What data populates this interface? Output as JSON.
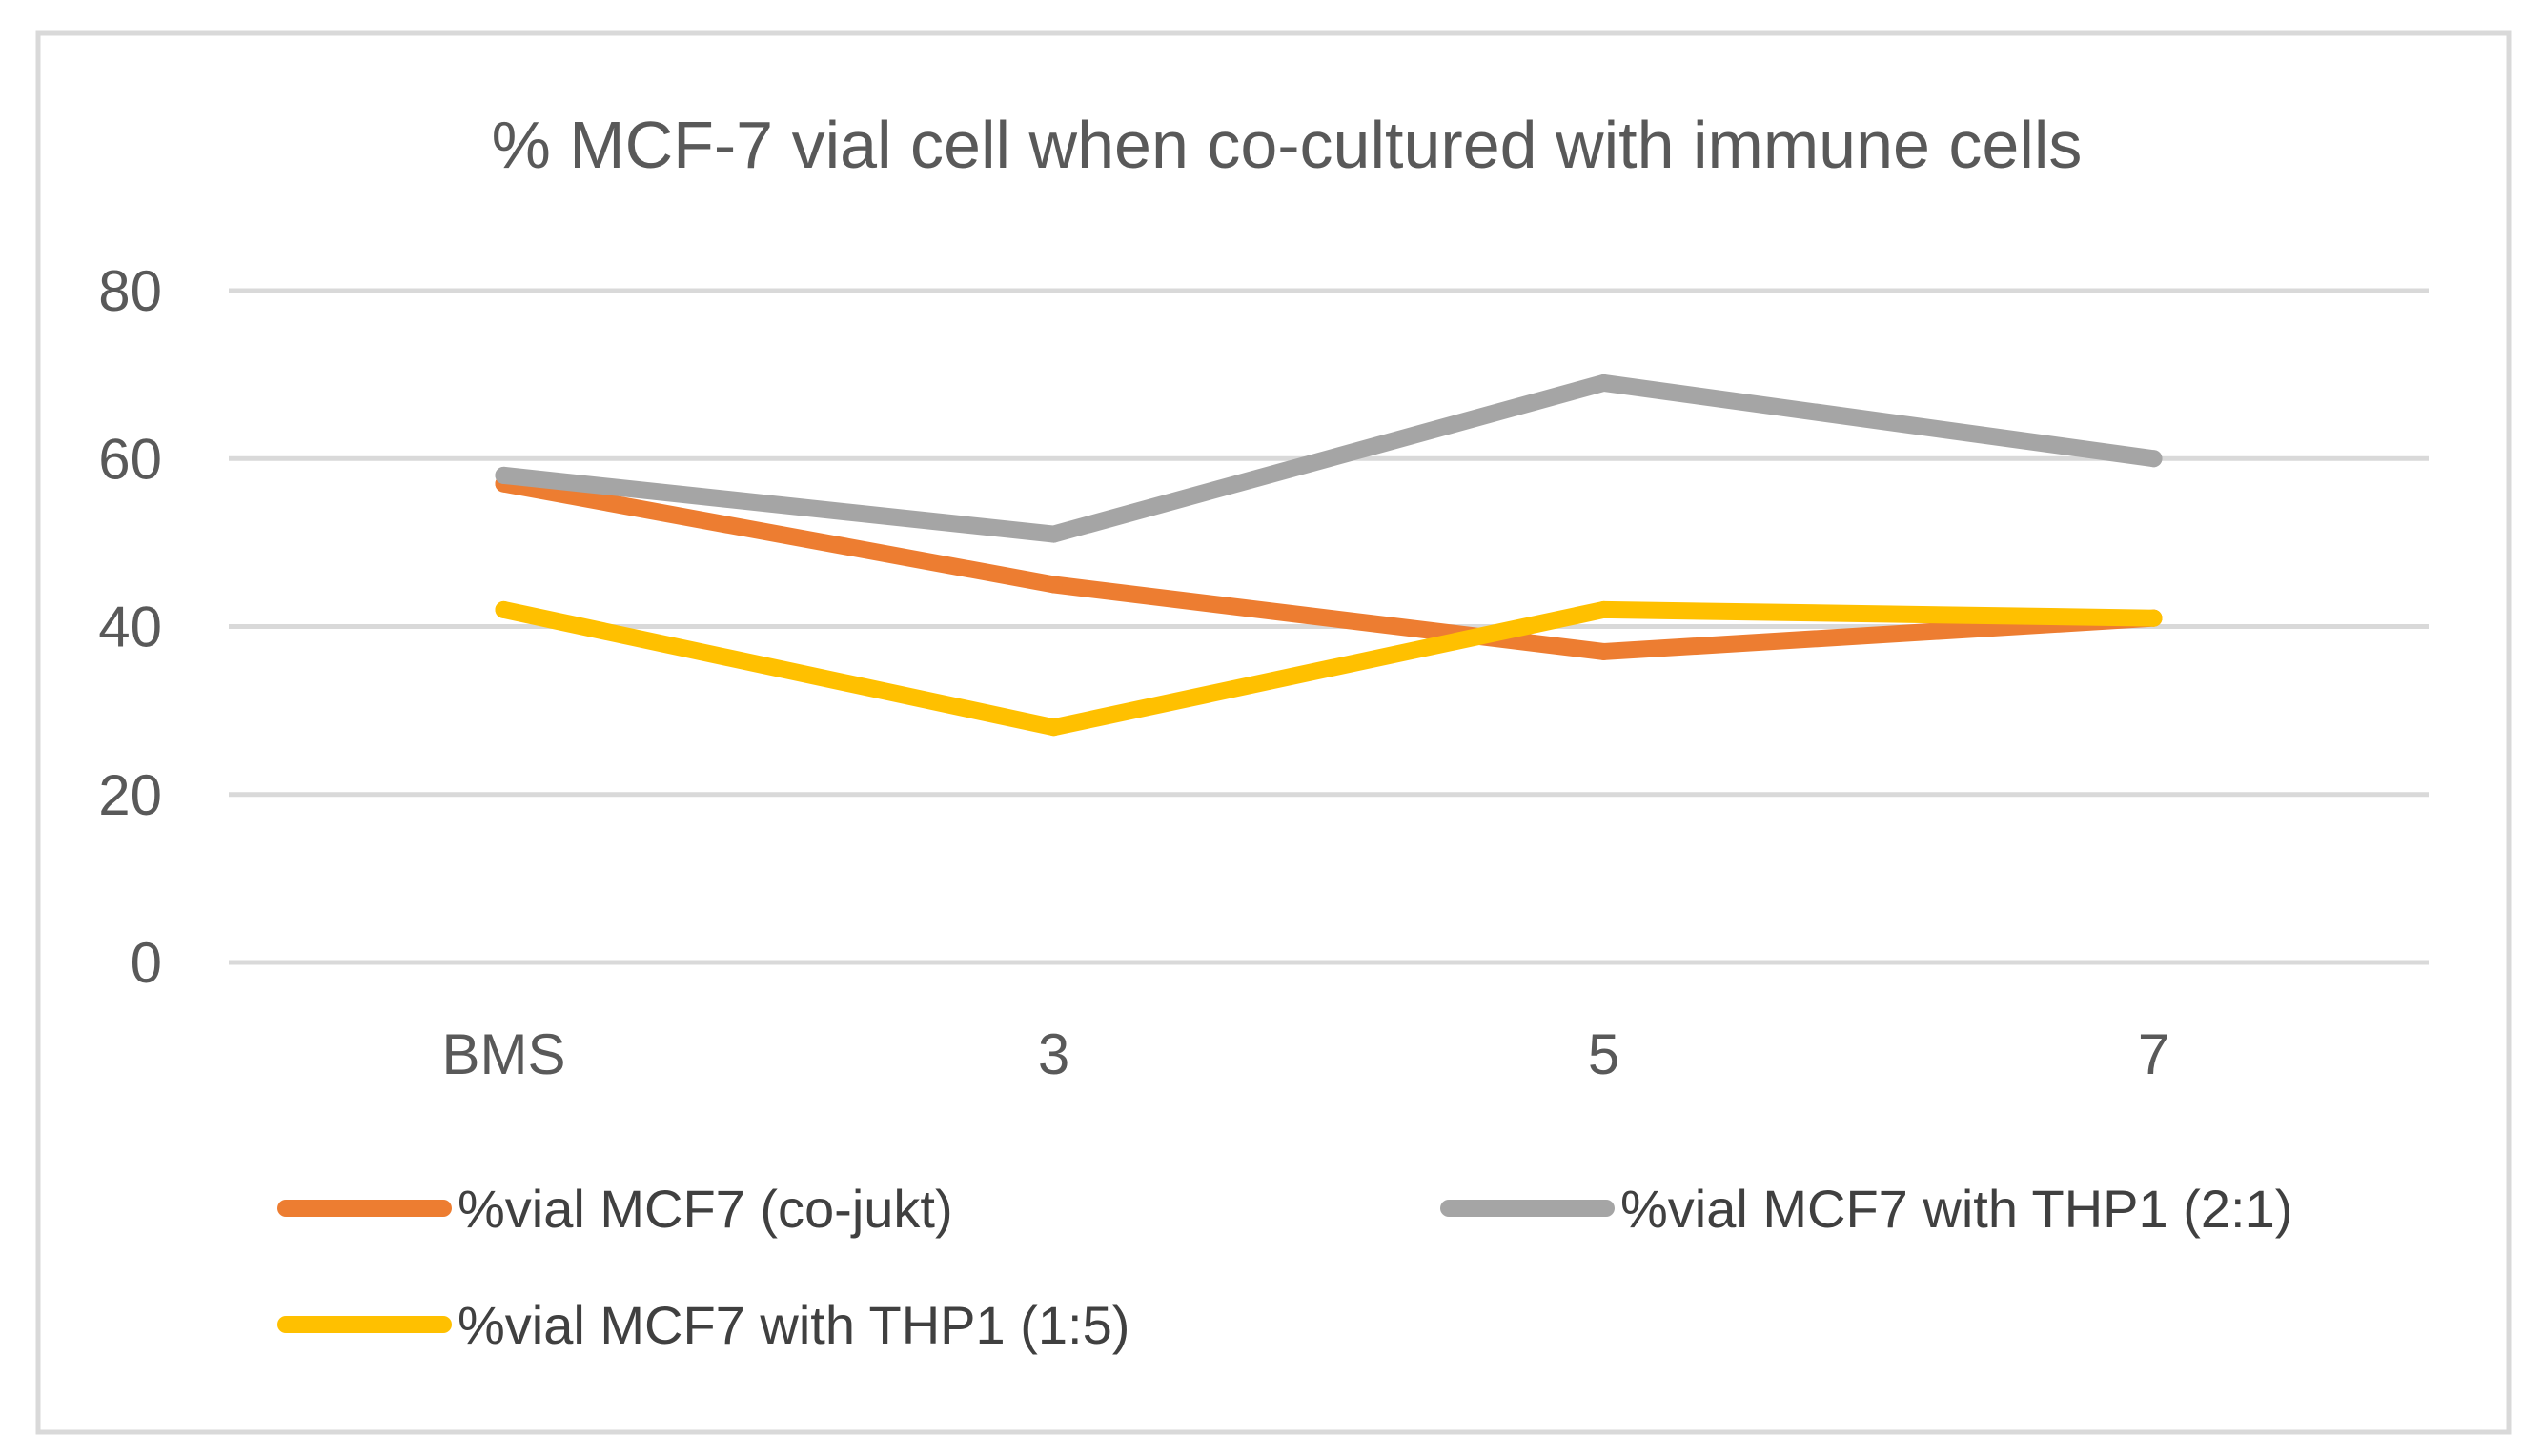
{
  "chart_data": {
    "type": "line",
    "title": "% MCF-7 vial cell when co-cultured with immune cells",
    "categories": [
      "BMS",
      "3",
      "5",
      "7"
    ],
    "ylim": [
      0,
      80
    ],
    "yticks": [
      0,
      20,
      40,
      60,
      80
    ],
    "grid": true,
    "legend_position": "bottom",
    "series": [
      {
        "name": "%vial MCF7 (co-jukt)",
        "color": "#ED7D31",
        "values": [
          57,
          45,
          37,
          41
        ]
      },
      {
        "name": "%vial MCF7 with THP1 (2:1)",
        "color": "#A5A5A5",
        "values": [
          58,
          51,
          69,
          60
        ]
      },
      {
        "name": "%vial MCF7 with THP1 (1:5)",
        "color": "#FFC000",
        "values": [
          42,
          28,
          42,
          41
        ]
      }
    ]
  }
}
